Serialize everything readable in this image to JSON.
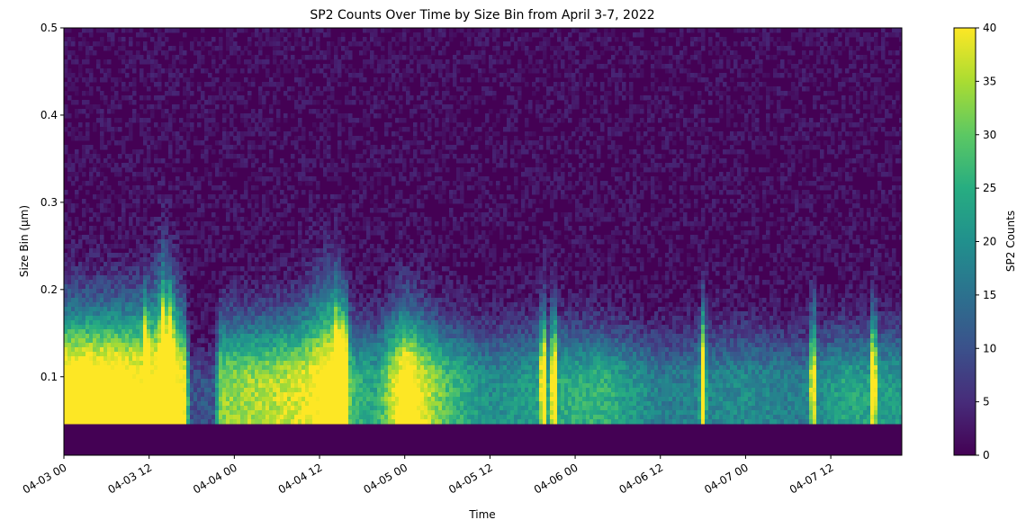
{
  "chart_data": {
    "type": "heatmap",
    "title": "SP2 Counts Over Time by Size Bin from April 3-7, 2022",
    "xlabel": "Time",
    "ylabel": "Size Bin (μm)",
    "x_range": [
      "2022-04-03 00:00",
      "2022-04-07 22:00"
    ],
    "ylim": [
      0.01,
      0.5
    ],
    "x_ticks": [
      {
        "label": "04-03 00",
        "hour": 0
      },
      {
        "label": "04-03 12",
        "hour": 12
      },
      {
        "label": "04-04 00",
        "hour": 24
      },
      {
        "label": "04-04 12",
        "hour": 36
      },
      {
        "label": "04-05 00",
        "hour": 48
      },
      {
        "label": "04-05 12",
        "hour": 60
      },
      {
        "label": "04-06 00",
        "hour": 72
      },
      {
        "label": "04-06 12",
        "hour": 84
      },
      {
        "label": "04-07 00",
        "hour": 96
      },
      {
        "label": "04-07 12",
        "hour": 108
      }
    ],
    "y_ticks": [
      {
        "label": "0.1",
        "value": 0.1
      },
      {
        "label": "0.2",
        "value": 0.2
      },
      {
        "label": "0.3",
        "value": 0.3
      },
      {
        "label": "0.4",
        "value": 0.4
      },
      {
        "label": "0.5",
        "value": 0.5
      }
    ],
    "colorbar": {
      "label": "SP2 Counts",
      "range": [
        0,
        40
      ],
      "colormap": "viridis",
      "ticks": [
        {
          "label": "0",
          "value": 0
        },
        {
          "label": "5",
          "value": 5
        },
        {
          "label": "10",
          "value": 10
        },
        {
          "label": "15",
          "value": 15
        },
        {
          "label": "20",
          "value": 20
        },
        {
          "label": "25",
          "value": 25
        },
        {
          "label": "30",
          "value": 30
        },
        {
          "label": "35",
          "value": 35
        },
        {
          "label": "40",
          "value": 40
        }
      ]
    },
    "lowest_populated_bin": 0.045,
    "time_profile": [
      {
        "hour": 0,
        "intensity": 1.0,
        "height": 0.16
      },
      {
        "hour": 6,
        "intensity": 1.0,
        "height": 0.16
      },
      {
        "hour": 12,
        "intensity": 0.9,
        "height": 0.17
      },
      {
        "hour": 14,
        "intensity": 1.0,
        "height": 0.22
      },
      {
        "hour": 17,
        "intensity": 0.85,
        "height": 0.15
      },
      {
        "hour": 18,
        "intensity": 0.2,
        "height": 0.08
      },
      {
        "hour": 21,
        "intensity": 0.2,
        "height": 0.08
      },
      {
        "hour": 22,
        "intensity": 0.7,
        "height": 0.14
      },
      {
        "hour": 28,
        "intensity": 0.75,
        "height": 0.14
      },
      {
        "hour": 33,
        "intensity": 0.8,
        "height": 0.15
      },
      {
        "hour": 38,
        "intensity": 1.0,
        "height": 0.2
      },
      {
        "hour": 41,
        "intensity": 0.55,
        "height": 0.13
      },
      {
        "hour": 44,
        "intensity": 0.5,
        "height": 0.13
      },
      {
        "hour": 48,
        "intensity": 1.0,
        "height": 0.16
      },
      {
        "hour": 51,
        "intensity": 0.8,
        "height": 0.14
      },
      {
        "hour": 54,
        "intensity": 0.6,
        "height": 0.13
      },
      {
        "hour": 60,
        "intensity": 0.4,
        "height": 0.12
      },
      {
        "hour": 68,
        "intensity": 0.5,
        "height": 0.13
      },
      {
        "hour": 76,
        "intensity": 0.55,
        "height": 0.12
      },
      {
        "hour": 84,
        "intensity": 0.35,
        "height": 0.11
      },
      {
        "hour": 96,
        "intensity": 0.4,
        "height": 0.12
      },
      {
        "hour": 104,
        "intensity": 0.35,
        "height": 0.11
      },
      {
        "hour": 110,
        "intensity": 0.5,
        "height": 0.12
      },
      {
        "hour": 120,
        "intensity": 0.45,
        "height": 0.12
      }
    ],
    "spikes": [
      11.5,
      14.0,
      15.0,
      38.5,
      39.5,
      67.5,
      69.0,
      90.0,
      105.5,
      114.0
    ]
  }
}
